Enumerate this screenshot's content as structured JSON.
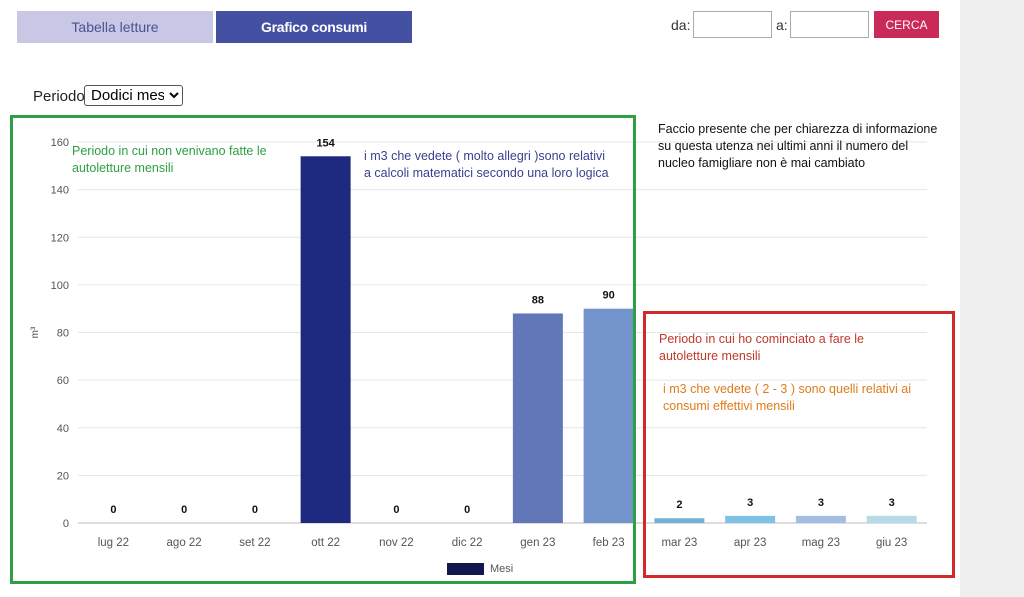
{
  "tabs": {
    "readings_table": "Tabella letture",
    "consumption_chart": "Grafico consumi"
  },
  "date_filter": {
    "from_label": "da:",
    "to_label": "a:",
    "from_value": "",
    "to_value": "",
    "search_label": "CERCA"
  },
  "period": {
    "label": "Periodo",
    "selected": "Dodici mesi"
  },
  "annotations": {
    "green_note": "Periodo in cui non venivano fatte le autoletture mensili",
    "blue_note": "i m3 che vedete ( molto allegri )sono relativi a calcoli matematici secondo una loro logica",
    "black_note": "Faccio presente che per chiarezza di informazione su questa utenza nei ultimi anni il numero del nucleo famigliare non è mai cambiato",
    "red_note": "Periodo in cui ho cominciato a fare le autoletture mensili",
    "orange_note": "i m3 che vedete ( 2 - 3 ) sono quelli relativi ai consumi effettivi mensili"
  },
  "colors": {
    "tab_active": "#4450a2",
    "tab_inactive": "#c9c7e6",
    "search_button": "#c92a57",
    "green_box": "#2ea043",
    "red_box": "#d22a2a"
  },
  "chart_data": {
    "type": "bar",
    "title": "",
    "xlabel": "",
    "ylabel": "m³",
    "ylim": [
      0,
      160
    ],
    "yticks": [
      0,
      20,
      40,
      60,
      80,
      100,
      120,
      140,
      160
    ],
    "categories": [
      "lug 22",
      "ago 22",
      "set 22",
      "ott 22",
      "nov 22",
      "dic 22",
      "gen 23",
      "feb 23",
      "mar 23",
      "apr 23",
      "mag 23",
      "giu 23"
    ],
    "values": [
      0,
      0,
      0,
      154,
      0,
      0,
      88,
      90,
      2,
      3,
      3,
      3
    ],
    "bar_colors": [
      "#1d2a80",
      "#1d2a80",
      "#1d2a80",
      "#1d2a80",
      "#1d2a80",
      "#1d2a80",
      "#6177b7",
      "#7393cb",
      "#6fb3dd",
      "#7ec3e6",
      "#a3bee0",
      "#b6dbe6"
    ],
    "legend": {
      "label": "Mesi",
      "color": "#13174f",
      "placement": "bottom"
    },
    "grid": true
  }
}
